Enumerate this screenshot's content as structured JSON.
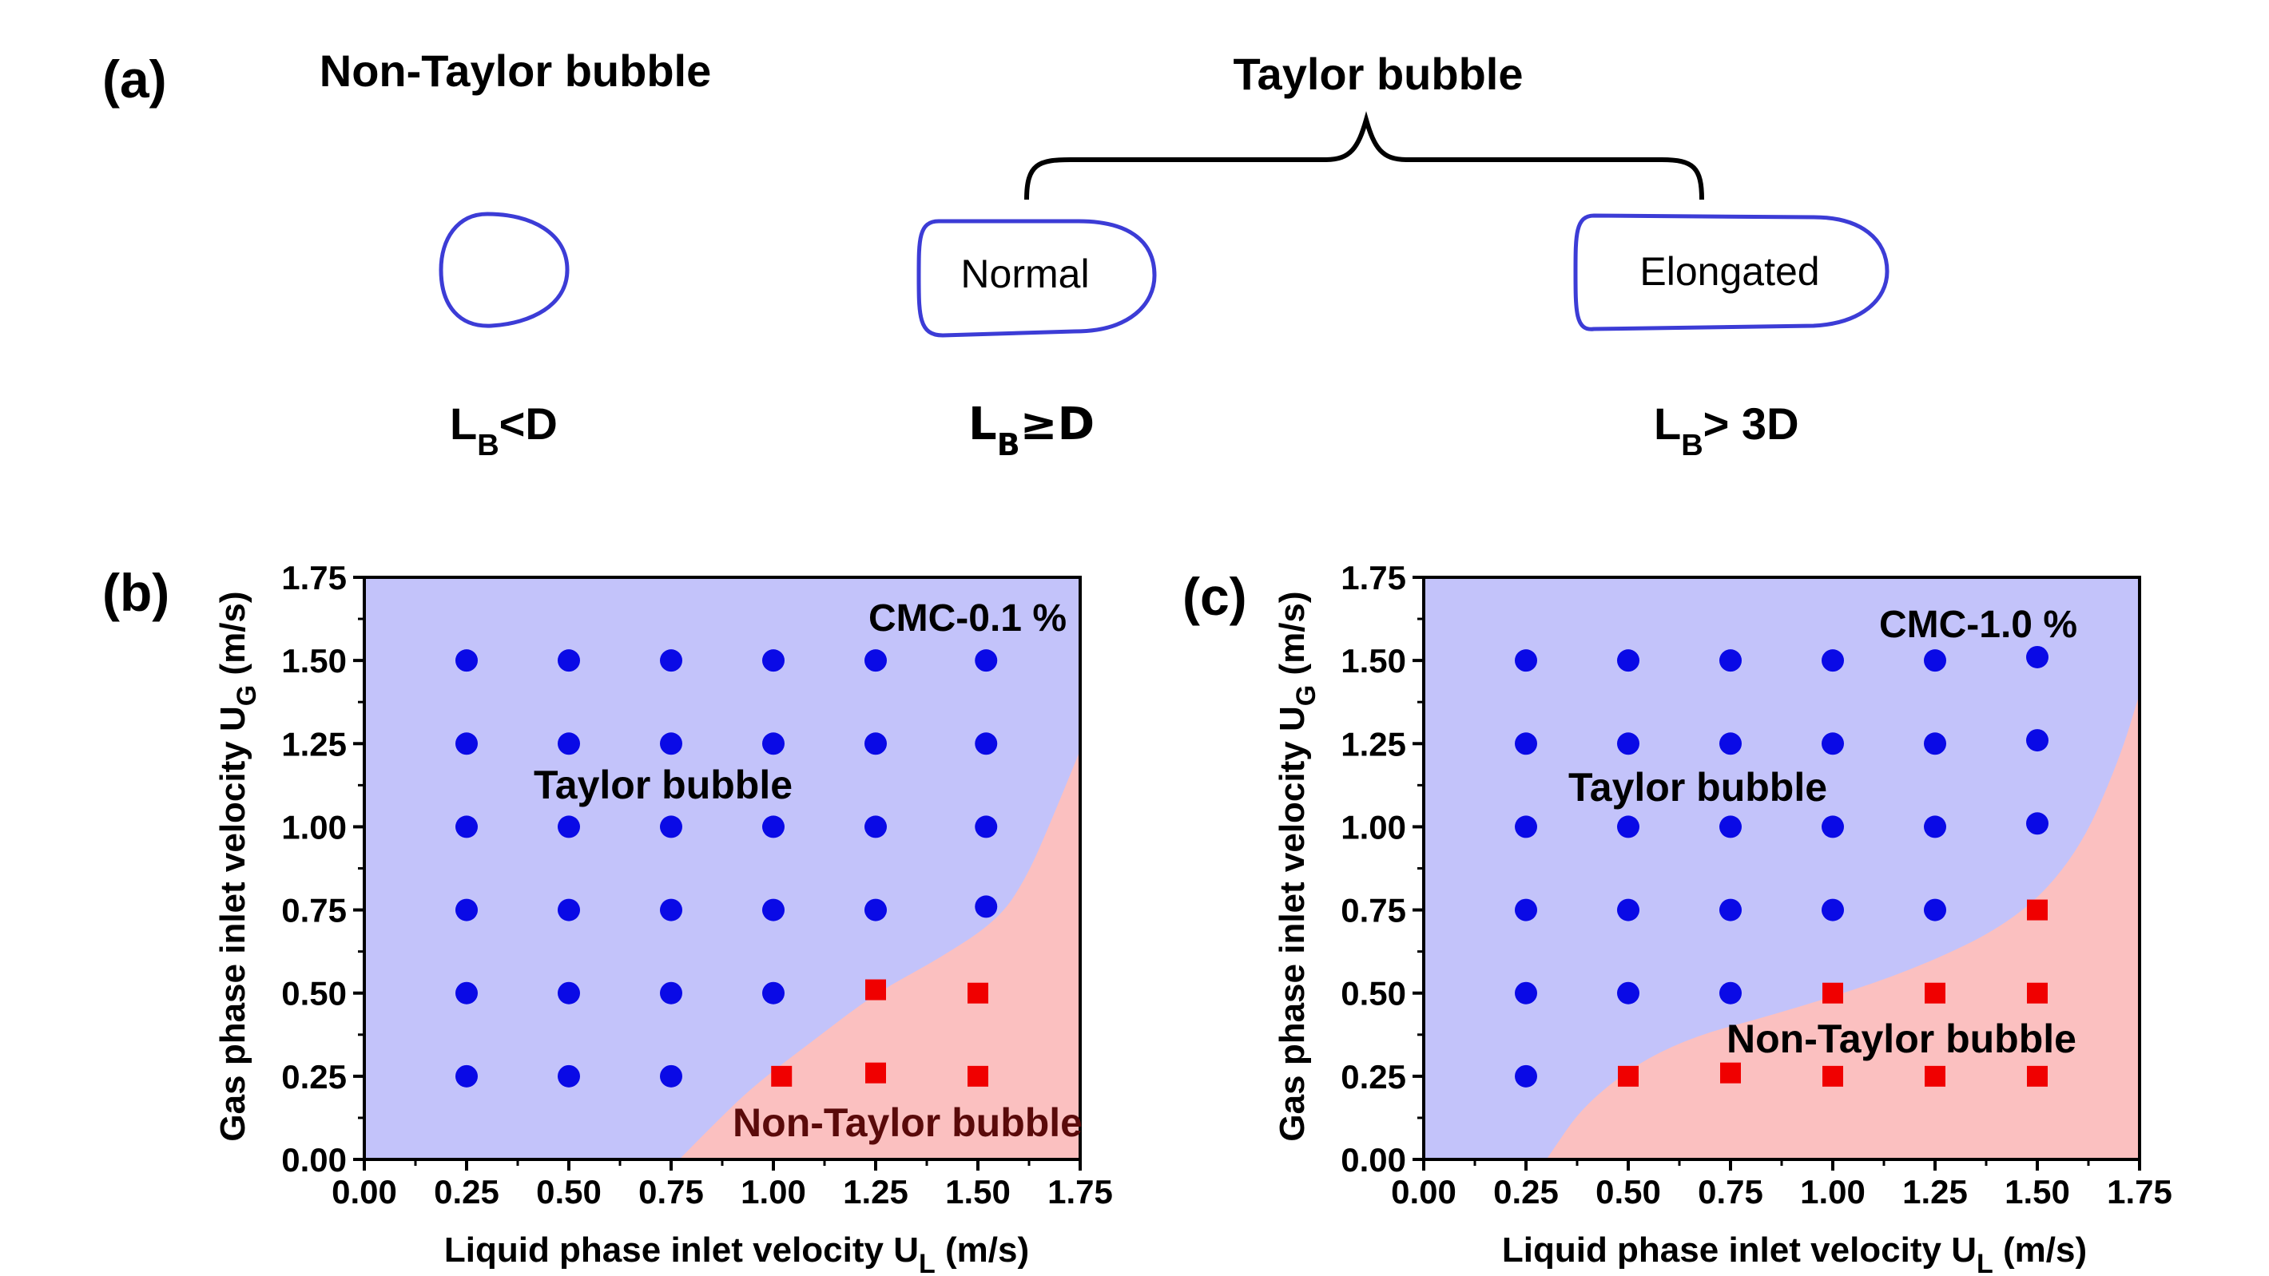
{
  "panel_a": {
    "label": "(a)",
    "non_taylor_title": "Non-Taylor bubble",
    "taylor_title": "Taylor bubble",
    "bubbles": [
      {
        "name": "non-taylor",
        "label": "",
        "cond_main": "L",
        "cond_sub": "B",
        "cond_rest": "<D"
      },
      {
        "name": "normal",
        "label": "Normal",
        "cond_main": "L",
        "cond_sub": "B",
        "cond_rest": "≥D"
      },
      {
        "name": "elongated",
        "label": "Elongated",
        "cond_main": "L",
        "cond_sub": "B",
        "cond_rest": "> 3D"
      }
    ]
  },
  "colors": {
    "taylor_region": "#c3c3fa",
    "non_taylor_region": "#fbc0c0",
    "taylor_marker": "#0a0ae6",
    "non_taylor_marker": "#f00000",
    "bubble_outline": "#3c3cd6",
    "region_label_dark": "#5a0a0a"
  },
  "chart_data": [
    {
      "type": "scatter",
      "panel_label": "(b)",
      "annotation": "CMC-0.1 %",
      "xlabel_main": "Liquid phase inlet velocity U",
      "xlabel_sub": "L",
      "xlabel_rest": " (m/s)",
      "ylabel_main": "Gas phase inlet velocity U",
      "ylabel_sub": "G",
      "ylabel_rest": " (m/s)",
      "xlim": [
        0,
        1.75
      ],
      "ylim": [
        0,
        1.75
      ],
      "xticks": [
        "0.00",
        "0.25",
        "0.50",
        "0.75",
        "1.00",
        "1.25",
        "1.50",
        "1.75"
      ],
      "yticks": [
        "0.00",
        "0.25",
        "0.50",
        "0.75",
        "1.00",
        "1.25",
        "1.50",
        "1.75"
      ],
      "region_labels": {
        "taylor": "Taylor bubble",
        "non_taylor": "Non-Taylor bubble"
      },
      "boundary": [
        [
          0.77,
          0.0
        ],
        [
          0.85,
          0.1
        ],
        [
          0.95,
          0.22
        ],
        [
          1.1,
          0.36
        ],
        [
          1.25,
          0.5
        ],
        [
          1.4,
          0.6
        ],
        [
          1.55,
          0.72
        ],
        [
          1.62,
          0.85
        ],
        [
          1.68,
          1.02
        ],
        [
          1.75,
          1.23
        ]
      ],
      "series": [
        {
          "name": "Taylor bubble",
          "marker": "circle",
          "points": [
            [
              0.25,
              1.5
            ],
            [
              0.5,
              1.5
            ],
            [
              0.75,
              1.5
            ],
            [
              1.0,
              1.5
            ],
            [
              1.25,
              1.5
            ],
            [
              1.52,
              1.5
            ],
            [
              0.25,
              1.25
            ],
            [
              0.5,
              1.25
            ],
            [
              0.75,
              1.25
            ],
            [
              1.0,
              1.25
            ],
            [
              1.25,
              1.25
            ],
            [
              1.52,
              1.25
            ],
            [
              0.25,
              1.0
            ],
            [
              0.5,
              1.0
            ],
            [
              0.75,
              1.0
            ],
            [
              1.0,
              1.0
            ],
            [
              1.25,
              1.0
            ],
            [
              1.52,
              1.0
            ],
            [
              0.25,
              0.75
            ],
            [
              0.5,
              0.75
            ],
            [
              0.75,
              0.75
            ],
            [
              1.0,
              0.75
            ],
            [
              1.25,
              0.75
            ],
            [
              1.52,
              0.76
            ],
            [
              0.25,
              0.5
            ],
            [
              0.5,
              0.5
            ],
            [
              0.75,
              0.5
            ],
            [
              1.0,
              0.5
            ],
            [
              0.25,
              0.25
            ],
            [
              0.5,
              0.25
            ],
            [
              0.75,
              0.25
            ]
          ]
        },
        {
          "name": "Non-Taylor bubble",
          "marker": "square",
          "points": [
            [
              1.25,
              0.51
            ],
            [
              1.5,
              0.5
            ],
            [
              1.02,
              0.25
            ],
            [
              1.25,
              0.26
            ],
            [
              1.5,
              0.25
            ]
          ]
        }
      ]
    },
    {
      "type": "scatter",
      "panel_label": "(c)",
      "annotation": "CMC-1.0 %",
      "xlabel_main": "Liquid phase inlet velocity U",
      "xlabel_sub": "L",
      "xlabel_rest": " (m/s)",
      "ylabel_main": "Gas phase inlet velocity U",
      "ylabel_sub": "G",
      "ylabel_rest": " (m/s)",
      "xlim": [
        0,
        1.75
      ],
      "ylim": [
        0,
        1.75
      ],
      "xticks": [
        "0.00",
        "0.25",
        "0.50",
        "0.75",
        "1.00",
        "1.25",
        "1.50",
        "1.75"
      ],
      "yticks": [
        "0.00",
        "0.25",
        "0.50",
        "0.75",
        "1.00",
        "1.25",
        "1.50",
        "1.75"
      ],
      "region_labels": {
        "taylor": "Taylor bubble",
        "non_taylor": "Non-Taylor bubble"
      },
      "boundary": [
        [
          0.3,
          0.0
        ],
        [
          0.4,
          0.18
        ],
        [
          0.6,
          0.35
        ],
        [
          0.9,
          0.45
        ],
        [
          1.2,
          0.57
        ],
        [
          1.45,
          0.72
        ],
        [
          1.6,
          0.92
        ],
        [
          1.7,
          1.2
        ],
        [
          1.75,
          1.4
        ]
      ],
      "series": [
        {
          "name": "Taylor bubble",
          "marker": "circle",
          "points": [
            [
              0.25,
              1.5
            ],
            [
              0.5,
              1.5
            ],
            [
              0.75,
              1.5
            ],
            [
              1.0,
              1.5
            ],
            [
              1.25,
              1.5
            ],
            [
              1.5,
              1.51
            ],
            [
              0.25,
              1.25
            ],
            [
              0.5,
              1.25
            ],
            [
              0.75,
              1.25
            ],
            [
              1.0,
              1.25
            ],
            [
              1.25,
              1.25
            ],
            [
              1.5,
              1.26
            ],
            [
              0.25,
              1.0
            ],
            [
              0.5,
              1.0
            ],
            [
              0.75,
              1.0
            ],
            [
              1.0,
              1.0
            ],
            [
              1.25,
              1.0
            ],
            [
              1.5,
              1.01
            ],
            [
              0.25,
              0.75
            ],
            [
              0.5,
              0.75
            ],
            [
              0.75,
              0.75
            ],
            [
              1.0,
              0.75
            ],
            [
              1.25,
              0.75
            ],
            [
              0.25,
              0.5
            ],
            [
              0.5,
              0.5
            ],
            [
              0.75,
              0.5
            ],
            [
              0.25,
              0.25
            ]
          ]
        },
        {
          "name": "Non-Taylor bubble",
          "marker": "square",
          "points": [
            [
              1.5,
              0.75
            ],
            [
              1.0,
              0.5
            ],
            [
              1.25,
              0.5
            ],
            [
              1.5,
              0.5
            ],
            [
              0.5,
              0.25
            ],
            [
              0.75,
              0.26
            ],
            [
              1.0,
              0.25
            ],
            [
              1.25,
              0.25
            ],
            [
              1.5,
              0.25
            ]
          ]
        }
      ]
    }
  ]
}
